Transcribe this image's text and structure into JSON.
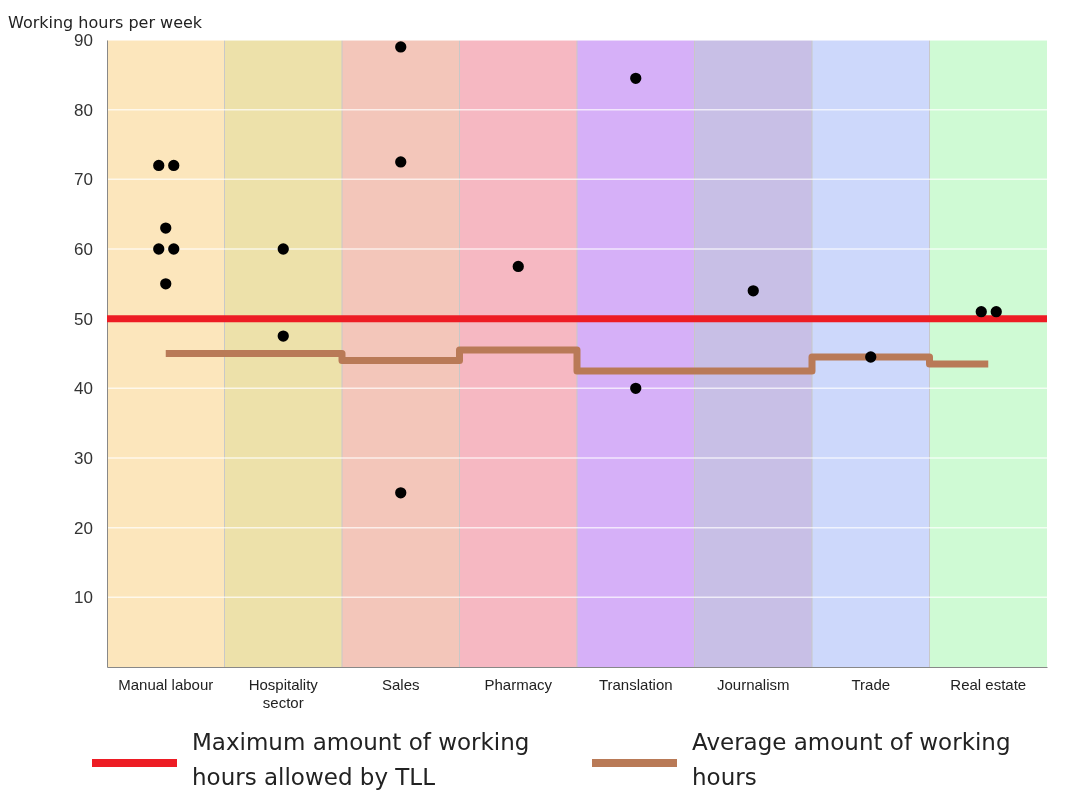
{
  "chart_data": {
    "type": "scatter",
    "ylabel": "Working hours per week",
    "categories": [
      "Manual labour",
      "Hospitality sector",
      "Sales",
      "Pharmacy",
      "Translation",
      "Journalism",
      "Trade",
      "Real estate"
    ],
    "ylim": [
      0,
      90
    ],
    "yticks": [
      10,
      20,
      30,
      40,
      50,
      60,
      70,
      80,
      90
    ],
    "grid": "y",
    "legend": "bottom",
    "bands": [
      {
        "axis": "x",
        "from": "Manual labour",
        "to": "Manual labour",
        "color": "#fce6bc"
      },
      {
        "axis": "x",
        "from": "Hospitality sector",
        "to": "Hospitality sector",
        "color": "#ede1aa"
      },
      {
        "axis": "x",
        "from": "Sales",
        "to": "Sales",
        "color": "#f3c6ba"
      },
      {
        "axis": "x",
        "from": "Pharmacy",
        "to": "Pharmacy",
        "color": "#f6b8c2"
      },
      {
        "axis": "x",
        "from": "Translation",
        "to": "Translation",
        "color": "#d6b0f8"
      },
      {
        "axis": "x",
        "from": "Journalism",
        "to": "Journalism",
        "color": "#c8bfe6"
      },
      {
        "axis": "x",
        "from": "Trade",
        "to": "Trade",
        "color": "#cdd8fb"
      },
      {
        "axis": "x",
        "from": "Real estate",
        "to": "Real estate",
        "color": "#cffad4"
      }
    ],
    "ref_lines": [
      {
        "axis": "y",
        "value": 50,
        "label": "Maximum amount of working hours allowed by TLL",
        "color": "#ed1c24"
      }
    ],
    "series": [
      {
        "marker": "circle",
        "color": "#000000",
        "x": [
          "Manual labour",
          "Manual labour",
          "Manual labour",
          "Manual labour",
          "Manual labour",
          "Manual labour",
          "Hospitality sector",
          "Hospitality sector",
          "Sales",
          "Sales",
          "Sales",
          "Pharmacy",
          "Translation",
          "Translation",
          "Journalism",
          "Trade",
          "Real estate",
          "Real estate"
        ],
        "values": [
          72,
          72,
          63,
          60,
          60,
          55,
          60,
          47.5,
          89,
          72.5,
          25,
          57.5,
          84.5,
          40,
          54,
          44.5,
          51,
          51
        ]
      },
      {
        "type": "step",
        "name": "Average amount of working hours",
        "color": "#b97a57",
        "values": [
          45,
          45,
          44,
          45.5,
          42.5,
          42.5,
          44.5,
          43.5
        ]
      }
    ]
  }
}
